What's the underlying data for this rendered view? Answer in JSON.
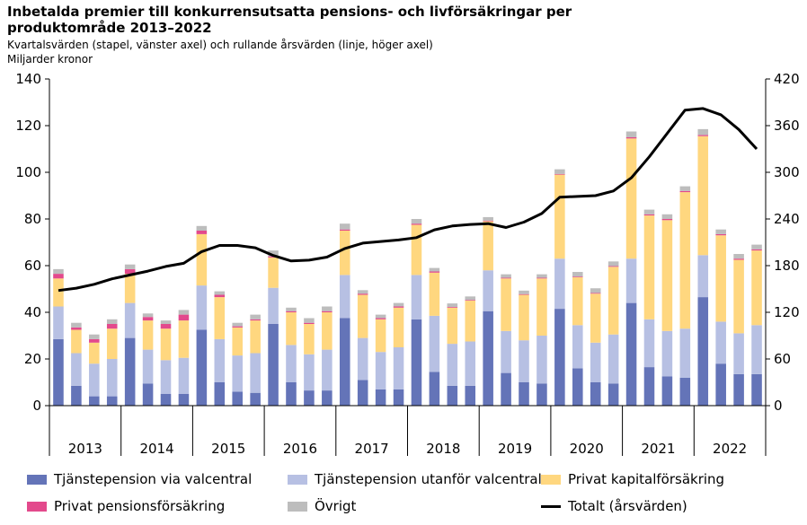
{
  "header": {
    "title": "Inbetalda premier till konkurrensutsatta pensions- och livförsäkringar per produktområde 2013–2022",
    "subtitle": "Kvartalsvärden (stapel, vänster axel) och rullande årsvärden (linje, höger axel)",
    "unit": "Miljarder kronor"
  },
  "chart_data": {
    "type": "bar",
    "stacked": true,
    "title": "Inbetalda premier till konkurrensutsatta pensions- och livförsäkringar per produktområde 2013–2022",
    "ylim": [
      0,
      140
    ],
    "y2lim": [
      0,
      420
    ],
    "yticks": [
      "0",
      "20",
      "40",
      "60",
      "80",
      "100",
      "120",
      "140"
    ],
    "y2ticks": [
      "0",
      "60",
      "120",
      "180",
      "240",
      "300",
      "360",
      "420"
    ],
    "years": [
      "2013",
      "2014",
      "2015",
      "2016",
      "2017",
      "2018",
      "2019",
      "2020",
      "2021",
      "2022"
    ],
    "categories": [
      "2013 Q1",
      "2013 Q2",
      "2013 Q3",
      "2013 Q4",
      "2014 Q1",
      "2014 Q2",
      "2014 Q3",
      "2014 Q4",
      "2015 Q1",
      "2015 Q2",
      "2015 Q3",
      "2015 Q4",
      "2016 Q1",
      "2016 Q2",
      "2016 Q3",
      "2016 Q4",
      "2017 Q1",
      "2017 Q2",
      "2017 Q3",
      "2017 Q4",
      "2018 Q1",
      "2018 Q2",
      "2018 Q3",
      "2018 Q4",
      "2019 Q1",
      "2019 Q2",
      "2019 Q3",
      "2019 Q4",
      "2020 Q1",
      "2020 Q2",
      "2020 Q3",
      "2020 Q4",
      "2021 Q1",
      "2021 Q2",
      "2021 Q3",
      "2021 Q4",
      "2022 Q1",
      "2022 Q2",
      "2022 Q3",
      "2022 Q4"
    ],
    "series": [
      {
        "name": "Tjänstepension via valcentral",
        "color": "#6474b8",
        "values": [
          28.5,
          8.5,
          4,
          4,
          29,
          9.5,
          5,
          5,
          32.5,
          10,
          6,
          5.5,
          35,
          10,
          6.5,
          6.5,
          37.5,
          11,
          7,
          7,
          37,
          14.5,
          8.5,
          8.5,
          40.5,
          14,
          10,
          9.5,
          41.5,
          16,
          10,
          9.5,
          44,
          16.5,
          12.5,
          12,
          46.5,
          18,
          13.5,
          13.5
        ]
      },
      {
        "name": "Tjänstepension utanför valcentral",
        "color": "#b7c0e3",
        "values": [
          14,
          14,
          14,
          16,
          15,
          14.5,
          14.5,
          15.5,
          19,
          18.5,
          15.5,
          17,
          15.5,
          16,
          15.5,
          17.5,
          18.5,
          18,
          16,
          18,
          19,
          24,
          18,
          19,
          17.5,
          18,
          18,
          20.5,
          21.5,
          18.5,
          17,
          21,
          19,
          20.5,
          19.5,
          21,
          18,
          18,
          17.5,
          21
        ]
      },
      {
        "name": "Privat kapitalförsäkring",
        "color": "#ffd77f",
        "values": [
          12,
          10,
          9,
          13,
          12.5,
          12.5,
          13.5,
          16,
          22,
          18,
          12,
          14,
          13,
          14,
          13,
          16,
          19,
          18.5,
          14,
          17,
          21.5,
          18.5,
          15.5,
          17.5,
          21,
          22.5,
          19.5,
          24.5,
          36,
          20.5,
          21,
          29,
          51.5,
          44.5,
          47.5,
          58.5,
          51,
          37,
          31.5,
          32
        ]
      },
      {
        "name": "Privat pensionsförsäkring",
        "color": "#e3498c",
        "values": [
          2,
          1,
          1.5,
          2,
          2,
          1.5,
          2,
          2.5,
          1.5,
          1,
          0.5,
          0.5,
          0.5,
          0.5,
          0.5,
          0.5,
          0.5,
          0.5,
          0.5,
          0.5,
          0.5,
          0.5,
          0.3,
          0.3,
          0.3,
          0.3,
          0.3,
          0.3,
          0.3,
          0.3,
          0.3,
          0.3,
          0.5,
          0.5,
          0.5,
          0.5,
          0.5,
          0.5,
          0.5,
          0.5
        ]
      },
      {
        "name": "Övrigt",
        "color": "#bdbdbd",
        "values": [
          2,
          2,
          2,
          2,
          2,
          1.5,
          1.5,
          2,
          2,
          1.5,
          1.5,
          2,
          2.5,
          1.5,
          2,
          2,
          2.5,
          1.5,
          1.5,
          1.5,
          2,
          1.5,
          1.5,
          1.5,
          1.5,
          1.5,
          1.5,
          1.5,
          2,
          2,
          2,
          2,
          2.5,
          2,
          2,
          2,
          2.5,
          2,
          2,
          2
        ]
      },
      {
        "name": "Totalt (årsvärden)",
        "type": "line",
        "axis": "right",
        "color": "#000000",
        "values": [
          148,
          151,
          156,
          163,
          168,
          173,
          179,
          183,
          198,
          206,
          206,
          203,
          193,
          186,
          187,
          191,
          202,
          209,
          211,
          213,
          216,
          226,
          231,
          233,
          234,
          229,
          236,
          247,
          268,
          269,
          270,
          276,
          293,
          320,
          350,
          380,
          382,
          374,
          355,
          330
        ]
      }
    ]
  },
  "legend": {
    "items": [
      {
        "label": "Tjänstepension via valcentral",
        "color": "#6474b8",
        "kind": "box"
      },
      {
        "label": "Tjänstepension utanför valcentral",
        "color": "#b7c0e3",
        "kind": "box"
      },
      {
        "label": "Privat kapitalförsäkring",
        "color": "#ffd77f",
        "kind": "box"
      },
      {
        "label": "Privat pensionsförsäkring",
        "color": "#e3498c",
        "kind": "box"
      },
      {
        "label": "Övrigt",
        "color": "#bdbdbd",
        "kind": "box"
      },
      {
        "label": "Totalt (årsvärden)",
        "color": "#000000",
        "kind": "line"
      }
    ]
  }
}
